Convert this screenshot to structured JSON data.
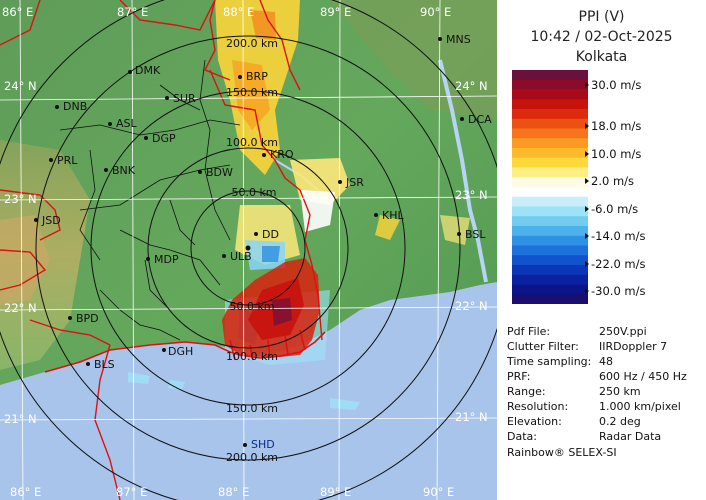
{
  "map": {
    "lat_labels_left": [
      "24° N",
      "23° N",
      "22° N",
      "21° N"
    ],
    "lat_labels_right": [
      "24° N",
      "23° N",
      "22° N",
      "21° N"
    ],
    "lon_labels_top": [
      "86° E",
      "87° E",
      "88° E",
      "89° E",
      "90° E"
    ],
    "lon_labels_bottom": [
      "86° E",
      "87° E",
      "88° E",
      "89° E",
      "90° E"
    ],
    "range_labels": [
      "50.0 km",
      "100.0 km",
      "150.0 km",
      "200.0 km",
      "50.0 km",
      "100.0 km",
      "150.0 km",
      "200.0 km"
    ],
    "cities": [
      "MNS",
      "DMK",
      "BRP",
      "DNB",
      "SUR",
      "ASL",
      "DGP",
      "KRO",
      "DCA",
      "PRL",
      "BNK",
      "BDW",
      "JSR",
      "JSD",
      "KHL",
      "DD",
      "BSL",
      "MDP",
      "ULB",
      "BPD",
      "DGH",
      "BLS",
      "SHD"
    ]
  },
  "panel": {
    "title_line1": "PPI (V)",
    "title_line2": "10:42 / 02-Oct-2025",
    "title_line3": "Kolkata",
    "legend": {
      "labels": [
        "30.0 m/s",
        "18.0 m/s",
        "10.0 m/s",
        "2.0 m/s",
        "-6.0 m/s",
        "-14.0 m/s",
        "-22.0 m/s",
        "-30.0 m/s"
      ],
      "colors": [
        "#6b0f3c",
        "#8a0c2a",
        "#a80a1a",
        "#c8120c",
        "#dc2a0e",
        "#ec5012",
        "#f6741c",
        "#fa9a24",
        "#fcba2a",
        "#fdd83a",
        "#fbef84",
        "#fdfbe6",
        "#ffffff",
        "#c8eefa",
        "#9ee2f8",
        "#72ccf2",
        "#4cb2ec",
        "#2e92e4",
        "#1c72da",
        "#1252cc",
        "#0c36b8",
        "#0a22a0",
        "#0c148a",
        "#1a0f70"
      ]
    },
    "info": [
      {
        "key": "Pdf File:",
        "value": "250V.ppi"
      },
      {
        "key": "Clutter Filter:",
        "value": "IIRDoppler 7"
      },
      {
        "key": "Time sampling:",
        "value": "48"
      },
      {
        "key": "PRF:",
        "value": "600 Hz / 450 Hz"
      },
      {
        "key": "Range:",
        "value": "250 km"
      },
      {
        "key": "Resolution:",
        "value": "1.000 km/pixel"
      },
      {
        "key": "Elevation:",
        "value": "0.2 deg"
      },
      {
        "key": "Data:",
        "value": "Radar Data"
      }
    ],
    "credit": "Rainbow® SELEX-SI"
  }
}
